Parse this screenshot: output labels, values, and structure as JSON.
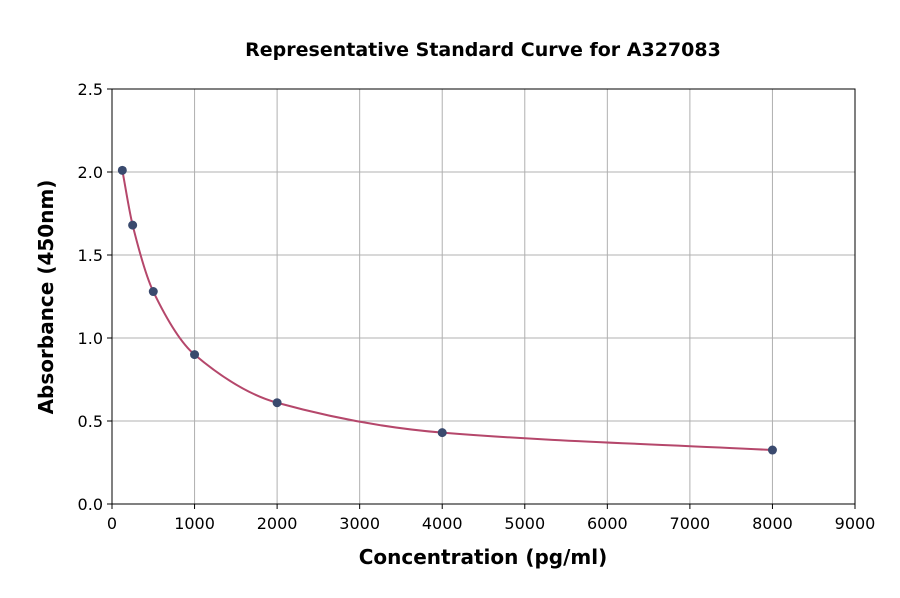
{
  "chart_data": {
    "type": "line",
    "title": "Representative Standard Curve for A327083",
    "xlabel": "Concentration (pg/ml)",
    "ylabel": "Absorbance (450nm)",
    "xlim": [
      0,
      9000
    ],
    "ylim": [
      0,
      2.5
    ],
    "xticks": [
      "0",
      "1000",
      "2000",
      "3000",
      "4000",
      "5000",
      "6000",
      "7000",
      "8000",
      "9000"
    ],
    "yticks": [
      "0.0",
      "0.5",
      "1.0",
      "1.5",
      "2.0",
      "2.5"
    ],
    "grid": true,
    "points": [
      {
        "x": 125,
        "y": 2.01
      },
      {
        "x": 250,
        "y": 1.68
      },
      {
        "x": 500,
        "y": 1.28
      },
      {
        "x": 1000,
        "y": 0.9
      },
      {
        "x": 2000,
        "y": 0.61
      },
      {
        "x": 4000,
        "y": 0.43
      },
      {
        "x": 8000,
        "y": 0.325
      }
    ],
    "colors": {
      "points": "#3a4a6e",
      "curve": "#b5476b"
    }
  }
}
